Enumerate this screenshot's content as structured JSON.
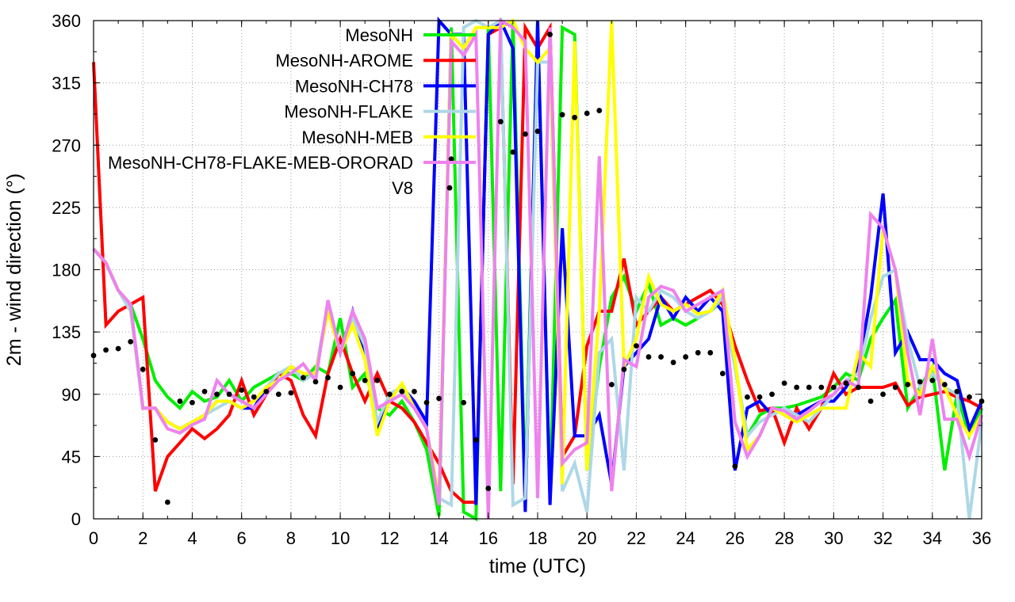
{
  "chart_data": {
    "type": "line",
    "title": "",
    "xlabel": "time (UTC)",
    "ylabel": "2m - wind direction (°)",
    "xlim": [
      0,
      36
    ],
    "ylim": [
      0,
      360
    ],
    "xticks": [
      "0",
      "2",
      "4",
      "6",
      "8",
      "10",
      "12",
      "14",
      "16",
      "18",
      "20",
      "22",
      "24",
      "26",
      "28",
      "30",
      "32",
      "34",
      "36"
    ],
    "yticks": [
      "0",
      "45",
      "90",
      "135",
      "180",
      "225",
      "270",
      "315",
      "360"
    ],
    "grid": true,
    "legend_position": "top-left-inside",
    "series": [
      {
        "name": "MesoNH",
        "color": "#00ee00",
        "style": "line",
        "x": [
          0,
          0.5,
          1,
          1.5,
          2,
          2.5,
          3,
          3.5,
          4,
          4.5,
          5,
          5.5,
          6,
          6.5,
          7,
          7.5,
          8,
          8.5,
          9,
          9.5,
          10,
          10.5,
          11,
          11.5,
          12,
          12.5,
          13,
          13.5,
          14,
          14.5,
          15,
          15.5,
          16,
          16.5,
          17,
          17.5,
          18,
          18.5,
          19,
          19.5,
          20,
          20.5,
          21,
          21.5,
          22,
          22.5,
          23,
          23.5,
          24,
          24.5,
          25,
          25.5,
          26,
          26.5,
          27,
          27.5,
          28,
          28.5,
          29,
          29.5,
          30,
          30.5,
          31,
          31.5,
          32,
          32.5,
          33,
          33.5,
          34,
          34.5,
          35,
          35.5,
          36
        ],
        "y": [
          195,
          185,
          165,
          155,
          130,
          100,
          88,
          80,
          92,
          85,
          88,
          100,
          85,
          95,
          100,
          105,
          105,
          100,
          110,
          105,
          145,
          95,
          105,
          80,
          75,
          85,
          70,
          50,
          2,
          355,
          5,
          0,
          355,
          20,
          360,
          20,
          360,
          15,
          355,
          350,
          35,
          110,
          160,
          175,
          150,
          170,
          140,
          145,
          140,
          145,
          150,
          158,
          110,
          60,
          75,
          80,
          80,
          82,
          85,
          88,
          95,
          105,
          100,
          130,
          145,
          158,
          80,
          95,
          110,
          35,
          90,
          60,
          80
        ]
      },
      {
        "name": "MesoNH-AROME",
        "color": "#ff0000",
        "style": "line",
        "x": [
          0,
          0.5,
          1,
          1.5,
          2,
          2.5,
          3,
          3.5,
          4,
          4.5,
          5,
          5.5,
          6,
          6.5,
          7,
          7.5,
          8,
          8.5,
          9,
          9.5,
          10,
          10.5,
          11,
          11.5,
          12,
          12.5,
          13,
          13.5,
          14,
          14.5,
          15,
          15.5,
          16,
          16.5,
          17,
          17.5,
          18,
          18.5,
          19,
          19.5,
          20,
          20.5,
          21,
          21.5,
          22,
          22.5,
          23,
          23.5,
          24,
          24.5,
          25,
          25.5,
          26,
          26.5,
          27,
          27.5,
          28,
          28.5,
          29,
          29.5,
          30,
          30.5,
          31,
          31.5,
          32,
          32.5,
          33,
          33.5,
          34,
          34.5,
          35,
          35.5,
          36
        ],
        "y": [
          330,
          140,
          150,
          155,
          160,
          20,
          45,
          55,
          65,
          58,
          65,
          75,
          100,
          75,
          90,
          105,
          100,
          75,
          60,
          105,
          130,
          105,
          85,
          105,
          85,
          80,
          70,
          55,
          40,
          20,
          12,
          12,
          350,
          355,
          25,
          355,
          340,
          355,
          45,
          60,
          125,
          150,
          150,
          188,
          140,
          150,
          160,
          150,
          155,
          160,
          165,
          155,
          125,
          100,
          78,
          80,
          55,
          80,
          65,
          80,
          105,
          90,
          95,
          95,
          95,
          98,
          82,
          88,
          90,
          92,
          88,
          85,
          80
        ]
      },
      {
        "name": "MesoNH-CH78",
        "color": "#0000ff",
        "style": "line",
        "x": [
          0,
          0.5,
          1,
          1.5,
          2,
          2.5,
          3,
          3.5,
          4,
          4.5,
          5,
          5.5,
          6,
          6.5,
          7,
          7.5,
          8,
          8.5,
          9,
          9.5,
          10,
          10.5,
          11,
          11.5,
          12,
          12.5,
          13,
          13.5,
          14,
          14.5,
          15,
          15.5,
          16,
          16.5,
          17,
          17.5,
          18,
          18.5,
          19,
          19.5,
          20,
          20.5,
          21,
          21.5,
          22,
          22.5,
          23,
          23.5,
          24,
          24.5,
          25,
          25.5,
          26,
          26.5,
          27,
          27.5,
          28,
          28.5,
          29,
          29.5,
          30,
          30.5,
          31,
          31.5,
          32,
          32.5,
          33,
          33.5,
          34,
          34.5,
          35,
          35.5,
          36
        ],
        "y": [
          195,
          185,
          165,
          155,
          80,
          80,
          70,
          65,
          70,
          75,
          85,
          85,
          80,
          80,
          95,
          100,
          110,
          105,
          105,
          155,
          120,
          150,
          120,
          65,
          90,
          95,
          85,
          70,
          360,
          350,
          350,
          10,
          350,
          360,
          340,
          5,
          360,
          10,
          210,
          60,
          60,
          75,
          25,
          110,
          120,
          130,
          160,
          145,
          160,
          150,
          160,
          150,
          35,
          80,
          85,
          75,
          80,
          75,
          80,
          85,
          85,
          95,
          110,
          160,
          235,
          120,
          135,
          115,
          115,
          105,
          100,
          65,
          85
        ]
      },
      {
        "name": "MesoNH-FLAKE",
        "color": "#add8e6",
        "style": "line",
        "x": [
          0,
          0.5,
          1,
          1.5,
          2,
          2.5,
          3,
          3.5,
          4,
          4.5,
          5,
          5.5,
          6,
          6.5,
          7,
          7.5,
          8,
          8.5,
          9,
          9.5,
          10,
          10.5,
          11,
          11.5,
          12,
          12.5,
          13,
          13.5,
          14,
          14.5,
          15,
          15.5,
          16,
          16.5,
          17,
          17.5,
          18,
          18.5,
          19,
          19.5,
          20,
          20.5,
          21,
          21.5,
          22,
          22.5,
          23,
          23.5,
          24,
          24.5,
          25,
          25.5,
          26,
          26.5,
          27,
          27.5,
          28,
          28.5,
          29,
          29.5,
          30,
          30.5,
          31,
          31.5,
          32,
          32.5,
          33,
          33.5,
          34,
          34.5,
          35,
          35.5,
          36
        ],
        "y": [
          195,
          185,
          165,
          150,
          80,
          80,
          70,
          65,
          70,
          75,
          80,
          85,
          80,
          85,
          95,
          105,
          110,
          100,
          105,
          155,
          120,
          145,
          125,
          70,
          90,
          95,
          80,
          65,
          15,
          10,
          355,
          360,
          355,
          360,
          10,
          15,
          330,
          330,
          20,
          40,
          5,
          120,
          130,
          35,
          160,
          150,
          165,
          160,
          150,
          145,
          150,
          160,
          110,
          60,
          70,
          75,
          80,
          75,
          70,
          80,
          90,
          100,
          105,
          145,
          175,
          180,
          130,
          95,
          105,
          95,
          90,
          0,
          70
        ]
      },
      {
        "name": "MesoNH-MEB",
        "color": "#ffff00",
        "style": "line",
        "x": [
          0,
          0.5,
          1,
          1.5,
          2,
          2.5,
          3,
          3.5,
          4,
          4.5,
          5,
          5.5,
          6,
          6.5,
          7,
          7.5,
          8,
          8.5,
          9,
          9.5,
          10,
          10.5,
          11,
          11.5,
          12,
          12.5,
          13,
          13.5,
          14,
          14.5,
          15,
          15.5,
          16,
          16.5,
          17,
          17.5,
          18,
          18.5,
          19,
          19.5,
          20,
          20.5,
          21,
          21.5,
          22,
          22.5,
          23,
          23.5,
          24,
          24.5,
          25,
          25.5,
          26,
          26.5,
          27,
          27.5,
          28,
          28.5,
          29,
          29.5,
          30,
          30.5,
          31,
          31.5,
          32,
          32.5,
          33,
          33.5,
          34,
          34.5,
          35,
          35.5,
          36
        ],
        "y": [
          195,
          185,
          165,
          155,
          80,
          80,
          70,
          65,
          70,
          75,
          85,
          85,
          80,
          85,
          95,
          100,
          110,
          105,
          105,
          150,
          120,
          140,
          115,
          60,
          85,
          98,
          80,
          65,
          15,
          350,
          340,
          355,
          355,
          355,
          360,
          340,
          330,
          340,
          25,
          345,
          35,
          150,
          360,
          110,
          130,
          175,
          155,
          150,
          155,
          148,
          150,
          165,
          115,
          50,
          60,
          80,
          75,
          70,
          75,
          80,
          80,
          80,
          120,
          110,
          210,
          180,
          100,
          90,
          110,
          95,
          75,
          60,
          75
        ]
      },
      {
        "name": "MesoNH-CH78-FLAKE-MEB-ORORAD",
        "color": "#ee82ee",
        "style": "line",
        "x": [
          0,
          0.5,
          1,
          1.5,
          2,
          2.5,
          3,
          3.5,
          4,
          4.5,
          5,
          5.5,
          6,
          6.5,
          7,
          7.5,
          8,
          8.5,
          9,
          9.5,
          10,
          10.5,
          11,
          11.5,
          12,
          12.5,
          13,
          13.5,
          14,
          14.5,
          15,
          15.5,
          16,
          16.5,
          17,
          17.5,
          18,
          18.5,
          19,
          19.5,
          20,
          20.5,
          21,
          21.5,
          22,
          22.5,
          23,
          23.5,
          24,
          24.5,
          25,
          25.5,
          26,
          26.5,
          27,
          27.5,
          28,
          28.5,
          29,
          29.5,
          30,
          30.5,
          31,
          31.5,
          32,
          32.5,
          33,
          33.5,
          34,
          34.5,
          35,
          35.5,
          36
        ],
        "y": [
          195,
          185,
          165,
          155,
          80,
          80,
          65,
          62,
          68,
          72,
          100,
          90,
          85,
          80,
          90,
          100,
          105,
          112,
          100,
          158,
          120,
          150,
          130,
          80,
          85,
          90,
          80,
          65,
          10,
          345,
          335,
          350,
          0,
          360,
          355,
          345,
          15,
          355,
          40,
          50,
          55,
          262,
          20,
          115,
          110,
          160,
          168,
          165,
          150,
          155,
          160,
          165,
          70,
          45,
          60,
          80,
          78,
          72,
          78,
          85,
          90,
          100,
          95,
          220,
          210,
          180,
          120,
          75,
          130,
          72,
          72,
          45,
          75
        ]
      },
      {
        "name": "V8",
        "color": "#000000",
        "style": "points",
        "x": [
          0,
          0.5,
          1,
          1.5,
          2,
          2.5,
          3,
          3.5,
          4,
          4.5,
          5,
          5.5,
          6,
          6.5,
          7,
          7.5,
          8,
          8.5,
          9,
          9.5,
          10,
          10.5,
          11,
          11.5,
          12,
          12.5,
          13,
          13.5,
          14,
          14.5,
          15,
          15.5,
          16,
          16.5,
          17,
          17.5,
          18,
          18.5,
          19,
          19.5,
          20,
          20.5,
          21,
          21.5,
          22,
          22.5,
          23,
          23.5,
          24,
          24.5,
          25,
          25.5,
          26,
          26.5,
          27,
          27.5,
          28,
          28.5,
          29,
          29.5,
          30,
          30.5,
          31,
          31.5,
          32,
          32.5,
          33,
          33.5,
          34,
          34.5,
          35,
          35.5,
          36
        ],
        "y": [
          118,
          122,
          123,
          128,
          108,
          57,
          12,
          85,
          84,
          92,
          90,
          90,
          93,
          88,
          92,
          90,
          91,
          102,
          99,
          102,
          95,
          105,
          100,
          100,
          90,
          92,
          92,
          84,
          87,
          260,
          84,
          57,
          22,
          287,
          265,
          278,
          280,
          350,
          292,
          290,
          293,
          295,
          97,
          108,
          125,
          117,
          117,
          113,
          117,
          120,
          120,
          105,
          38,
          88,
          88,
          90,
          98,
          95,
          95,
          95,
          95,
          98,
          95,
          85,
          90,
          95,
          97,
          99,
          100,
          97,
          92,
          88,
          85
        ]
      }
    ]
  }
}
